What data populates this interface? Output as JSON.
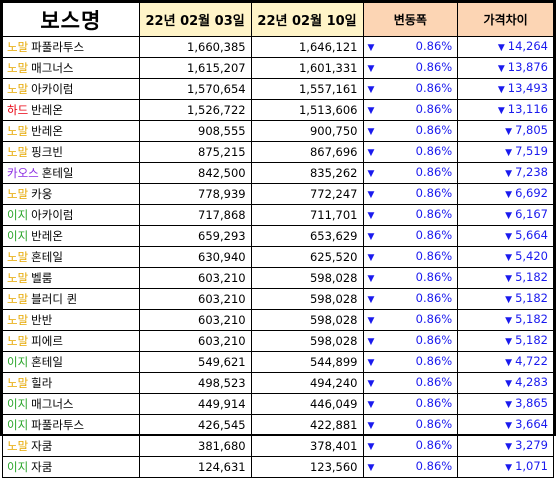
{
  "header": {
    "boss": "보스명",
    "date1": "22년 02월 03일",
    "date2": "22년 02월 10일",
    "change": "변동폭",
    "gap": "가격차이"
  },
  "colors": {
    "노말": "#e6a800",
    "하드": "#e8000f",
    "카오스": "#8a2be2",
    "이지": "#2aa52a",
    "down": "#1a1aee"
  },
  "rows": [
    {
      "difficulty": "노말",
      "boss": "파풀라투스",
      "price1": "1,660,385",
      "price2": "1,646,121",
      "change": "0.86%",
      "gap": "14,264"
    },
    {
      "difficulty": "노말",
      "boss": "매그너스",
      "price1": "1,615,207",
      "price2": "1,601,331",
      "change": "0.86%",
      "gap": "13,876"
    },
    {
      "difficulty": "노말",
      "boss": "아카이럼",
      "price1": "1,570,654",
      "price2": "1,557,161",
      "change": "0.86%",
      "gap": "13,493"
    },
    {
      "difficulty": "하드",
      "boss": "반레온",
      "price1": "1,526,722",
      "price2": "1,513,606",
      "change": "0.86%",
      "gap": "13,116"
    },
    {
      "difficulty": "노말",
      "boss": "반레온",
      "price1": "908,555",
      "price2": "900,750",
      "change": "0.86%",
      "gap": "7,805"
    },
    {
      "difficulty": "노말",
      "boss": "핑크빈",
      "price1": "875,215",
      "price2": "867,696",
      "change": "0.86%",
      "gap": "7,519"
    },
    {
      "difficulty": "카오스",
      "boss": "혼테일",
      "price1": "842,500",
      "price2": "835,262",
      "change": "0.86%",
      "gap": "7,238"
    },
    {
      "difficulty": "노말",
      "boss": "카웅",
      "price1": "778,939",
      "price2": "772,247",
      "change": "0.86%",
      "gap": "6,692"
    },
    {
      "difficulty": "이지",
      "boss": "아카이럼",
      "price1": "717,868",
      "price2": "711,701",
      "change": "0.86%",
      "gap": "6,167"
    },
    {
      "difficulty": "이지",
      "boss": "반레온",
      "price1": "659,293",
      "price2": "653,629",
      "change": "0.86%",
      "gap": "5,664"
    },
    {
      "difficulty": "노말",
      "boss": "혼테일",
      "price1": "630,940",
      "price2": "625,520",
      "change": "0.86%",
      "gap": "5,420"
    },
    {
      "difficulty": "노말",
      "boss": "벨룸",
      "price1": "603,210",
      "price2": "598,028",
      "change": "0.86%",
      "gap": "5,182"
    },
    {
      "difficulty": "노말",
      "boss": "블러디 퀸",
      "price1": "603,210",
      "price2": "598,028",
      "change": "0.86%",
      "gap": "5,182"
    },
    {
      "difficulty": "노말",
      "boss": "반반",
      "price1": "603,210",
      "price2": "598,028",
      "change": "0.86%",
      "gap": "5,182"
    },
    {
      "difficulty": "노말",
      "boss": "피에르",
      "price1": "603,210",
      "price2": "598,028",
      "change": "0.86%",
      "gap": "5,182"
    },
    {
      "difficulty": "이지",
      "boss": "혼테일",
      "price1": "549,621",
      "price2": "544,899",
      "change": "0.86%",
      "gap": "4,722"
    },
    {
      "difficulty": "노말",
      "boss": "힐라",
      "price1": "498,523",
      "price2": "494,240",
      "change": "0.86%",
      "gap": "4,283"
    },
    {
      "difficulty": "이지",
      "boss": "매그너스",
      "price1": "449,914",
      "price2": "446,049",
      "change": "0.86%",
      "gap": "3,865"
    },
    {
      "difficulty": "이지",
      "boss": "파풀라투스",
      "price1": "426,545",
      "price2": "422,881",
      "change": "0.86%",
      "gap": "3,664"
    },
    {
      "difficulty": "노말",
      "boss": "자쿰",
      "price1": "381,680",
      "price2": "378,401",
      "change": "0.86%",
      "gap": "3,279"
    },
    {
      "difficulty": "이지",
      "boss": "자쿰",
      "price1": "124,631",
      "price2": "123,560",
      "change": "0.86%",
      "gap": "1,071"
    }
  ]
}
